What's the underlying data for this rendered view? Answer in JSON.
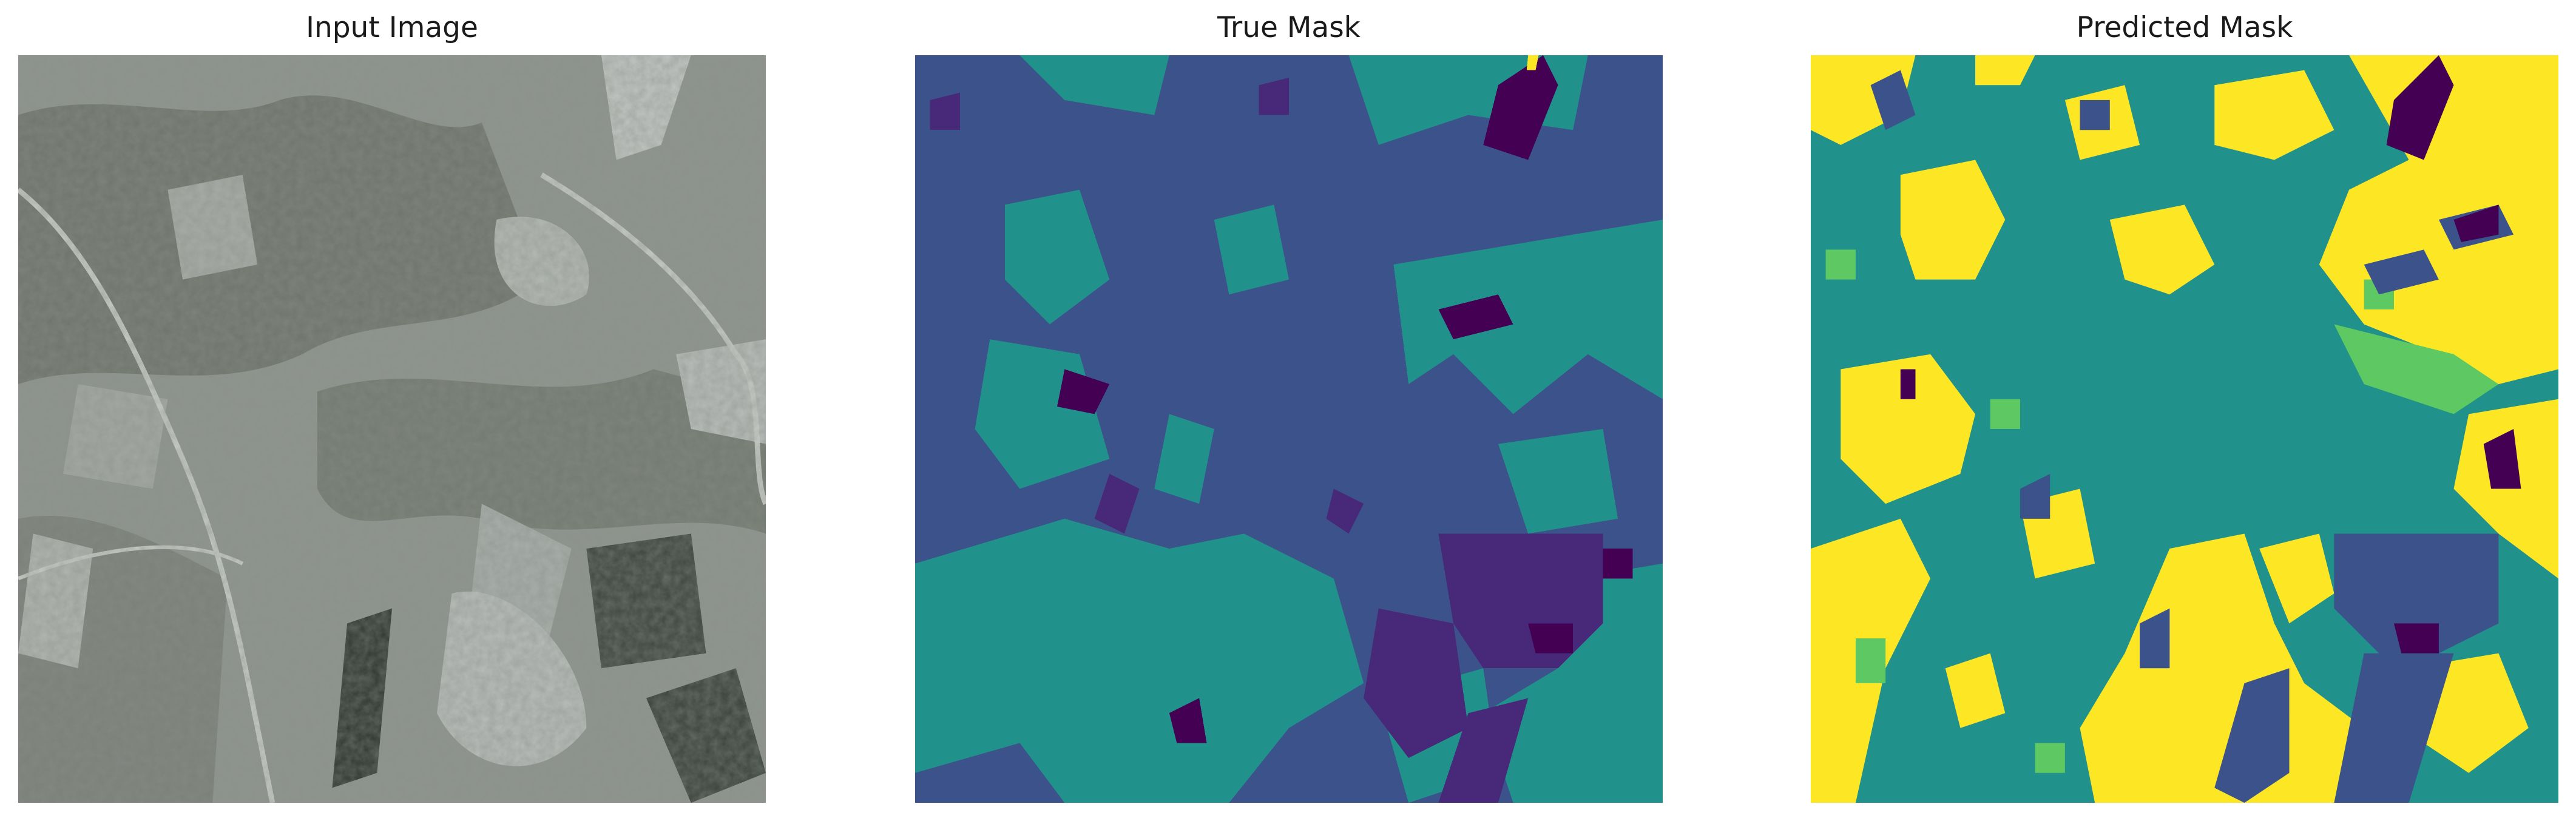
{
  "figure": {
    "panels": [
      {
        "title": "Input Image"
      },
      {
        "title": "True Mask"
      },
      {
        "title": "Predicted Mask"
      }
    ]
  },
  "colors": {
    "class_0": "#440154",
    "class_1": "#3b528b",
    "class_2": "#21918c",
    "class_3": "#5ec962",
    "class_4": "#fde725"
  }
}
